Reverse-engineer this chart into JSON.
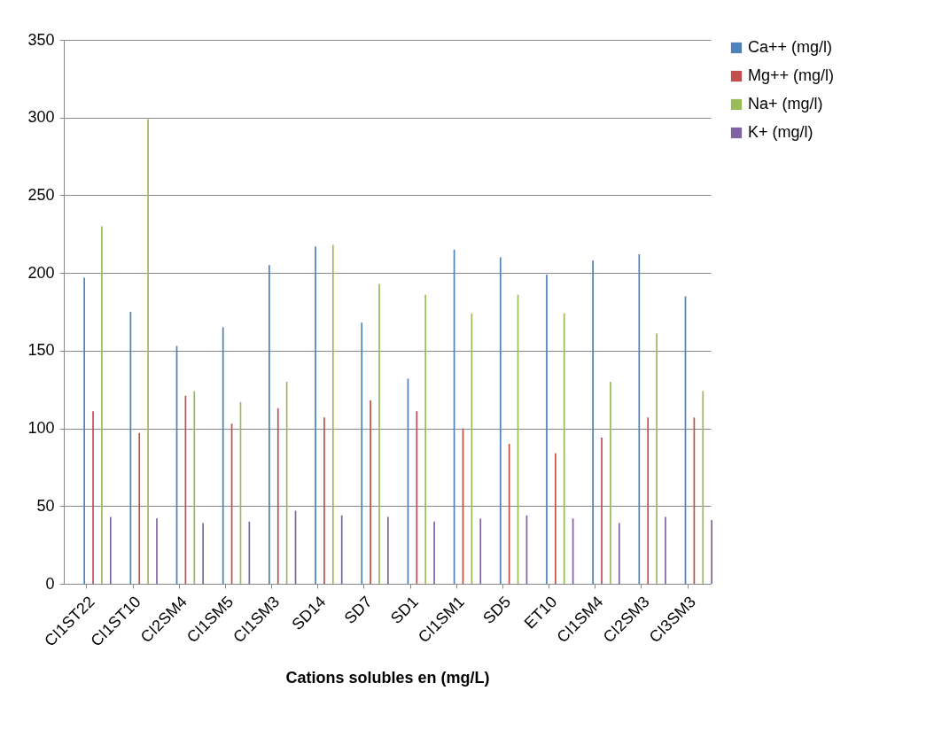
{
  "chart_data": {
    "type": "bar",
    "xlabel": "Cations solubles en (mg/L)",
    "categories": [
      "CI1ST22",
      "CI1ST10",
      "CI2SM4",
      "CI1SM5",
      "CI1SM3",
      "SD14",
      "SD7",
      "SD1",
      "CI1SM1",
      "SD5",
      "ET10",
      "CI1SM4",
      "CI2SM3",
      "CI3SM3"
    ],
    "series": [
      {
        "name": "Ca++ (mg/l)",
        "color": "#4f81bd",
        "values": [
          197,
          175,
          153,
          165,
          205,
          217,
          168,
          132,
          215,
          210,
          199,
          208,
          212,
          185
        ]
      },
      {
        "name": "Mg++ (mg/l)",
        "color": "#c0504d",
        "values": [
          111,
          97,
          121,
          103,
          113,
          107,
          118,
          111,
          100,
          90,
          84,
          94,
          107,
          107
        ]
      },
      {
        "name": "Na+ (mg/l)",
        "color": "#9bbb59",
        "values": [
          230,
          299,
          124,
          117,
          130,
          218,
          193,
          186,
          174,
          186,
          174,
          130,
          161,
          124
        ]
      },
      {
        "name": "K+ (mg/l)",
        "color": "#8064a2",
        "values": [
          43,
          42,
          39,
          40,
          47,
          44,
          43,
          40,
          42,
          44,
          42,
          39,
          43,
          41
        ]
      }
    ],
    "ylim": [
      0,
      350
    ],
    "yticks": [
      0,
      50,
      100,
      150,
      200,
      250,
      300,
      350
    ],
    "grid": "y",
    "legend": "right"
  }
}
